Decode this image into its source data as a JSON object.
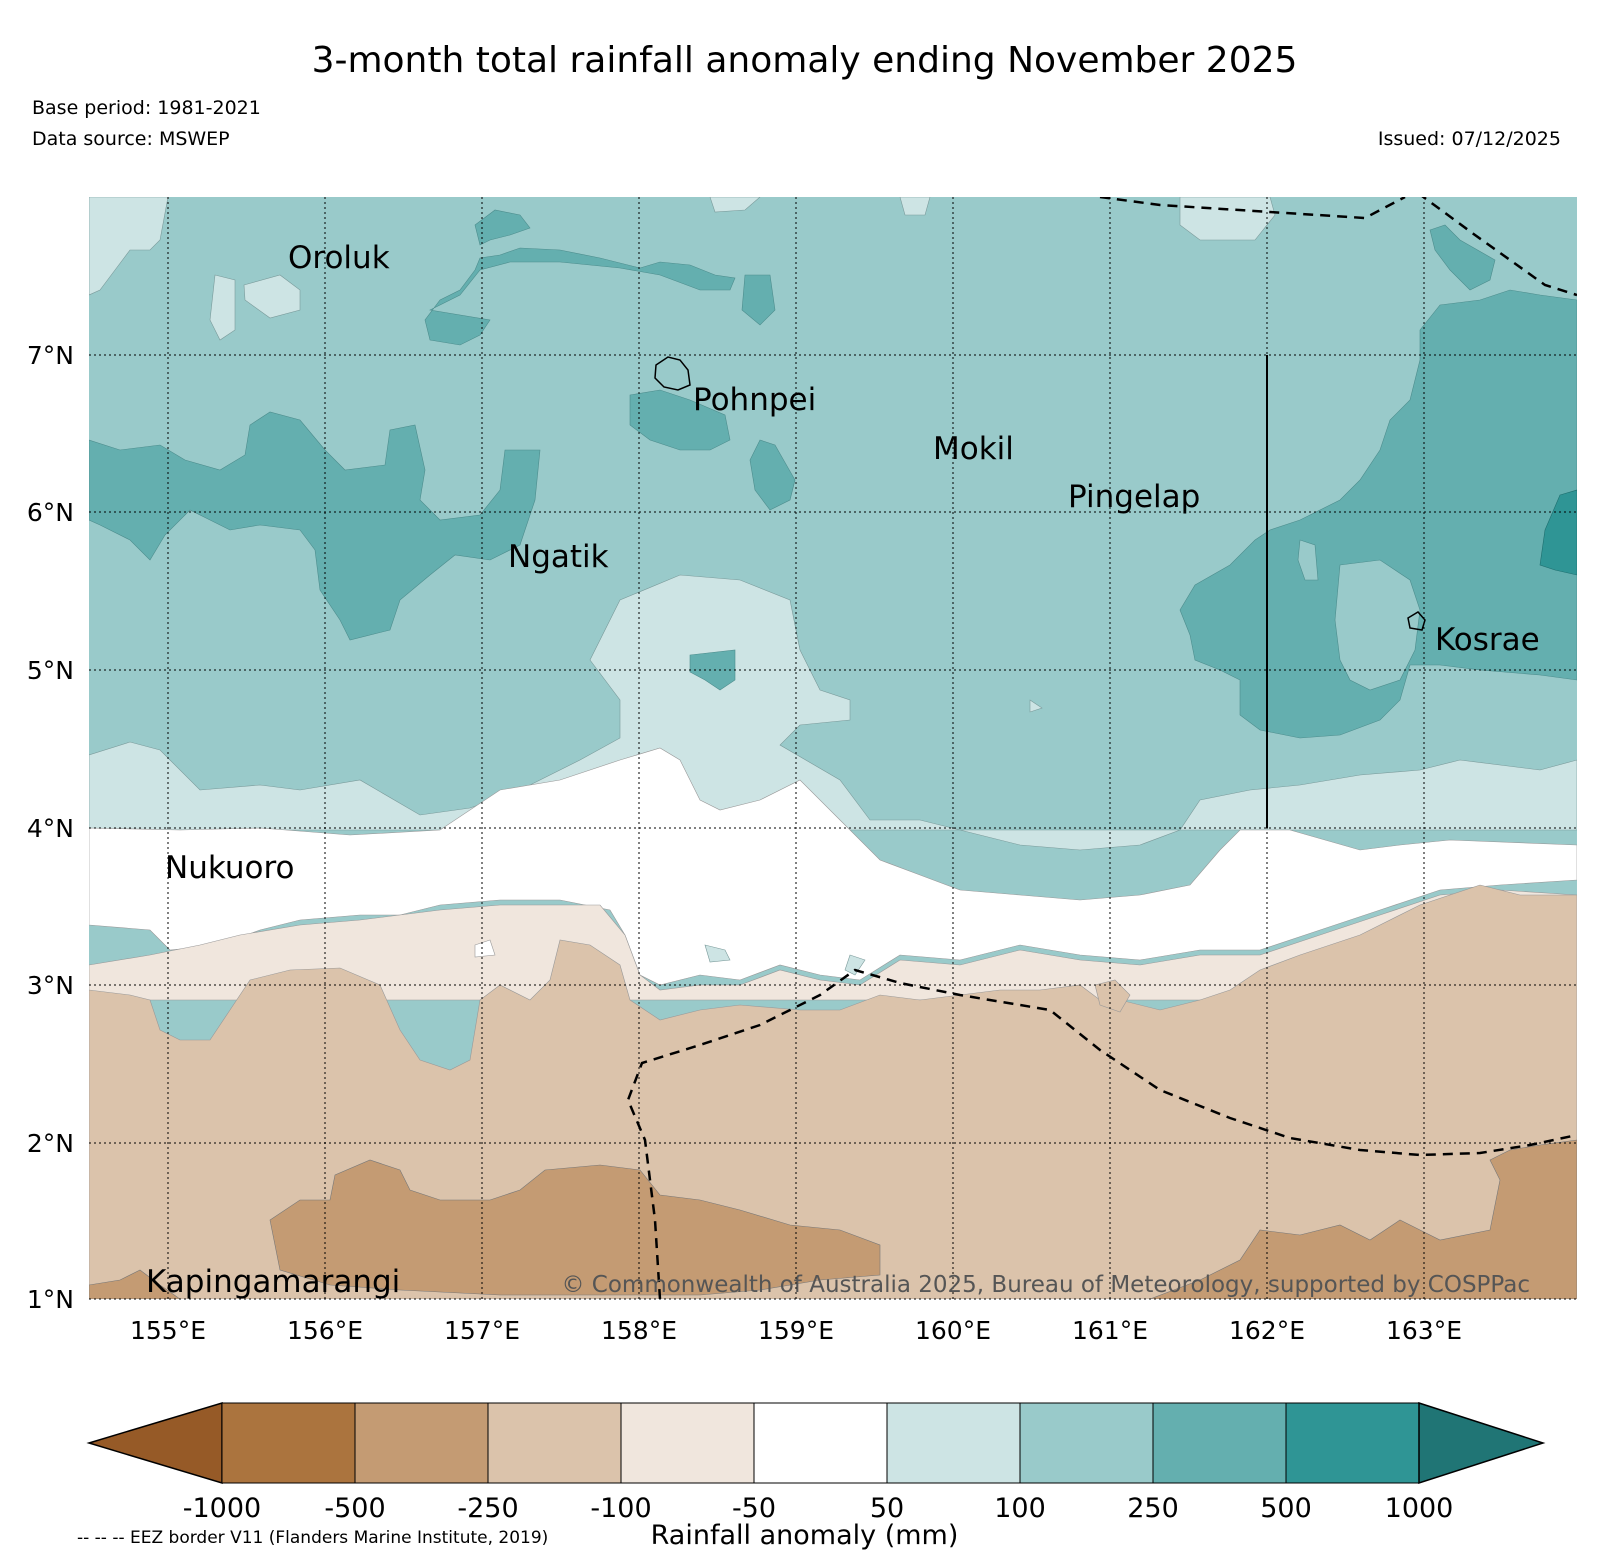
{
  "title": "3-month total rainfall anomaly ending November 2025",
  "base_period": "Base period: 1981-2021",
  "data_source": "Data source: MSWEP",
  "issued": "Issued: 07/12/2025",
  "copyright": "© Commonwealth of Australia 2025, Bureau of Meteorology, supported by COSPPac",
  "eez_note": "-- -- -- EEZ border V11 (Flanders Marine Institute, 2019)",
  "map": {
    "lat_labels": [
      "7°N",
      "6°N",
      "5°N",
      "4°N",
      "3°N",
      "2°N",
      "1°N"
    ],
    "lon_labels": [
      "155°E",
      "156°E",
      "157°E",
      "158°E",
      "159°E",
      "160°E",
      "161°E",
      "162°E",
      "163°E"
    ],
    "places": [
      {
        "name": "Oroluk",
        "lon": 155.8,
        "lat": 7.62
      },
      {
        "name": "Pohnpei",
        "lon": 158.22,
        "lat": 6.87
      },
      {
        "name": "Mokil",
        "lon": 159.78,
        "lat": 6.68
      },
      {
        "name": "Pingelap",
        "lon": 160.7,
        "lat": 6.21
      },
      {
        "name": "Ngatik",
        "lon": 157.28,
        "lat": 5.8
      },
      {
        "name": "Kosrae",
        "lon": 162.98,
        "lat": 5.32
      },
      {
        "name": "Nukuoro",
        "lon": 154.95,
        "lat": 3.85
      },
      {
        "name": "Kapingamarangi",
        "lon": 154.78,
        "lat": 1.07
      }
    ]
  },
  "colorbar": {
    "title": "Rainfall anomaly (mm)",
    "ticks": [
      "-1000",
      "-500",
      "-250",
      "-100",
      "-50",
      "50",
      "100",
      "250",
      "500",
      "1000"
    ],
    "colors": [
      "#965a27",
      "#ab743e",
      "#c49b73",
      "#dbc3ab",
      "#f0e6dd",
      "#ffffff",
      "#cde4e4",
      "#99caca",
      "#64afaf",
      "#2f9595",
      "#207575"
    ]
  }
}
